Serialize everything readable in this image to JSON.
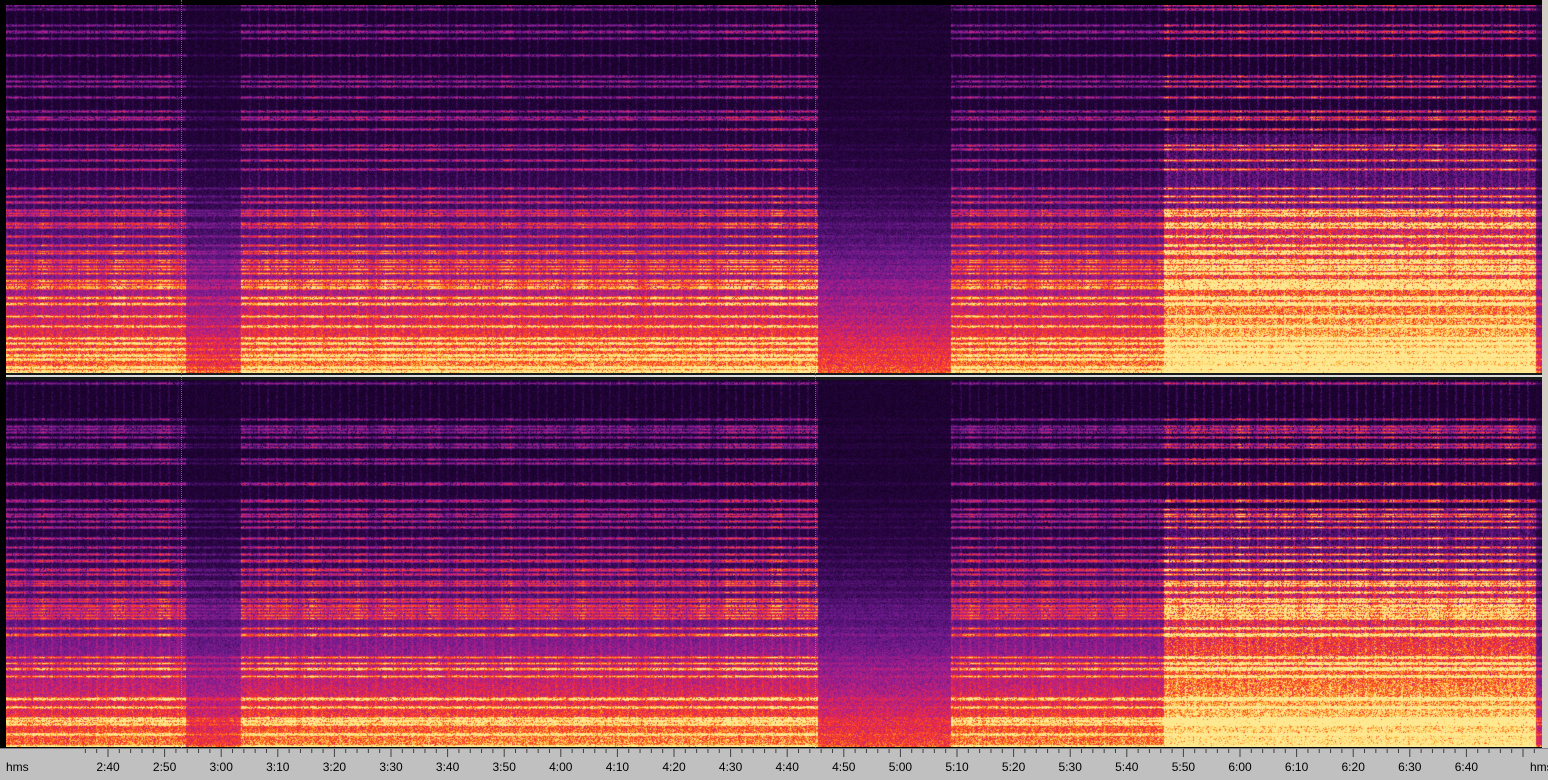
{
  "editor": {
    "view": "spectral",
    "channels": [
      "top",
      "bottom"
    ],
    "colormap": [
      "#06000d",
      "#2a0545",
      "#6a1a8c",
      "#b0208a",
      "#e8284a",
      "#ff4a1a",
      "#ffb030",
      "#ffe890"
    ]
  },
  "timeline": {
    "unit_left": "hms",
    "unit_right": "hms",
    "labels": [
      "2:40",
      "2:50",
      "3:00",
      "3:10",
      "3:20",
      "3:30",
      "3:40",
      "3:50",
      "4:00",
      "4:10",
      "4:20",
      "4:30",
      "4:40",
      "4:50",
      "5:00",
      "5:10",
      "5:20",
      "5:30",
      "5:40",
      "5:50",
      "6:00",
      "6:10",
      "6:20",
      "6:30",
      "6:40"
    ]
  }
}
